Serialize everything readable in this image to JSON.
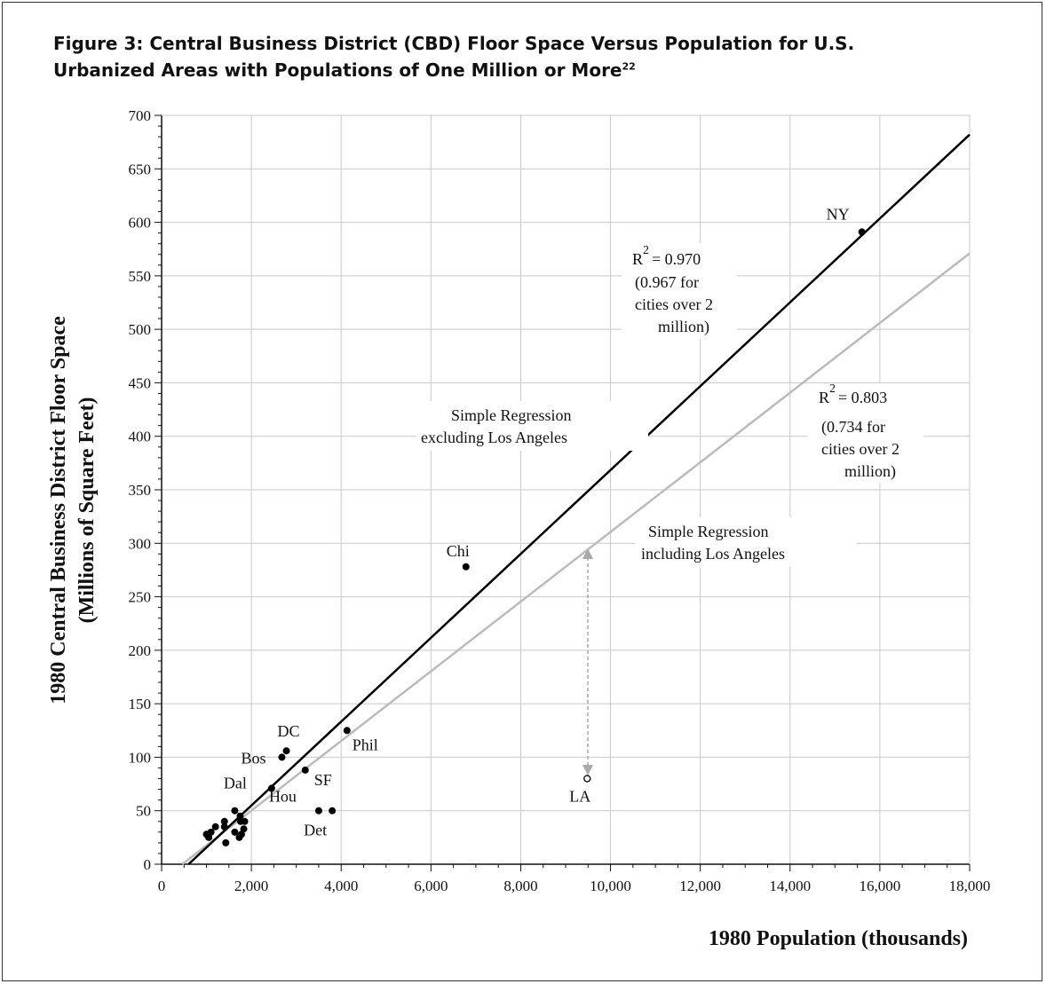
{
  "figure": {
    "title_line1": "Figure 3: Central Business District (CBD) Floor Space Versus Population for U.S.",
    "title_line2": "Urbanized Areas with Populations of One Million or More",
    "title_footnote": "22"
  },
  "chart_data": {
    "type": "scatter",
    "xlabel": "1980 Population (thousands)",
    "ylabel_line1": "1980 Central Business District Floor Space",
    "ylabel_line2": "(Millions of Square Feet)",
    "xlim": [
      0,
      18000
    ],
    "ylim": [
      0,
      700
    ],
    "x_ticks": [
      0,
      2000,
      4000,
      6000,
      8000,
      10000,
      12000,
      14000,
      16000,
      18000
    ],
    "x_tick_labels": [
      "0",
      "2,000",
      "4,000",
      "6,000",
      "8,000",
      "10,000",
      "12,000",
      "14,000",
      "16,000",
      "18,000"
    ],
    "y_ticks": [
      0,
      50,
      100,
      150,
      200,
      250,
      300,
      350,
      400,
      450,
      500,
      550,
      600,
      650,
      700
    ],
    "y_tick_labels": [
      "0",
      "50",
      "100",
      "150",
      "200",
      "250",
      "300",
      "350",
      "400",
      "450",
      "500",
      "550",
      "600",
      "650",
      "700"
    ],
    "grid": true,
    "points": [
      {
        "label": "NY",
        "x": 15600,
        "y": 591,
        "open": false
      },
      {
        "label": "Chi",
        "x": 6780,
        "y": 278,
        "open": false
      },
      {
        "label": "LA",
        "x": 9480,
        "y": 80,
        "open": true
      },
      {
        "label": "Phil",
        "x": 4130,
        "y": 125,
        "open": false
      },
      {
        "label": "DC",
        "x": 2780,
        "y": 106,
        "open": false
      },
      {
        "label": "Bos",
        "x": 2680,
        "y": 100,
        "open": false
      },
      {
        "label": "SF",
        "x": 3200,
        "y": 88,
        "open": false
      },
      {
        "label": "Dal",
        "x": 2450,
        "y": 71,
        "open": false
      },
      {
        "label": "Hou",
        "x": 3500,
        "y": 50,
        "open": false
      },
      {
        "label": "Det",
        "x": 3800,
        "y": 50,
        "open": false
      },
      {
        "label": "",
        "x": 1630,
        "y": 50,
        "open": false
      },
      {
        "label": "",
        "x": 1750,
        "y": 45,
        "open": false
      },
      {
        "label": "",
        "x": 1760,
        "y": 40,
        "open": false
      },
      {
        "label": "",
        "x": 1850,
        "y": 40,
        "open": false
      },
      {
        "label": "",
        "x": 1400,
        "y": 40,
        "open": false
      },
      {
        "label": "",
        "x": 1400,
        "y": 35,
        "open": false
      },
      {
        "label": "",
        "x": 1200,
        "y": 35,
        "open": false
      },
      {
        "label": "",
        "x": 1830,
        "y": 33,
        "open": false
      },
      {
        "label": "",
        "x": 1100,
        "y": 30,
        "open": false
      },
      {
        "label": "",
        "x": 1630,
        "y": 30,
        "open": false
      },
      {
        "label": "",
        "x": 1780,
        "y": 28,
        "open": false
      },
      {
        "label": "",
        "x": 1000,
        "y": 28,
        "open": false
      },
      {
        "label": "",
        "x": 1050,
        "y": 25,
        "open": false
      },
      {
        "label": "",
        "x": 1730,
        "y": 25,
        "open": false
      },
      {
        "label": "",
        "x": 1430,
        "y": 20,
        "open": false
      }
    ],
    "series": [
      {
        "name": "Simple Regression excluding Los Angeles",
        "color": "#000000",
        "x": [
          600,
          18000
        ],
        "y": [
          0,
          682
        ]
      },
      {
        "name": "Simple Regression including Los Angeles",
        "color": "#bbbbbb",
        "x": [
          460,
          18000
        ],
        "y": [
          0,
          571
        ]
      }
    ],
    "annotations": {
      "r2_excl_symbol": "R",
      "r2_excl_exp": "2",
      "r2_excl_value": "= 0.970",
      "r2_excl_note1": "(0.967 for",
      "r2_excl_note2": "cities over 2",
      "r2_excl_note3": "million)",
      "r2_incl_symbol": "R",
      "r2_incl_exp": "2",
      "r2_incl_value": "= 0.803",
      "r2_incl_note1": "(0.734 for",
      "r2_incl_note2": "cities over 2",
      "r2_incl_note3": "million)",
      "excl_label1": "Simple Regression",
      "excl_label2": "excluding Los Angeles",
      "incl_label1": "Simple Regression",
      "incl_label2": "including Los Angeles"
    }
  }
}
